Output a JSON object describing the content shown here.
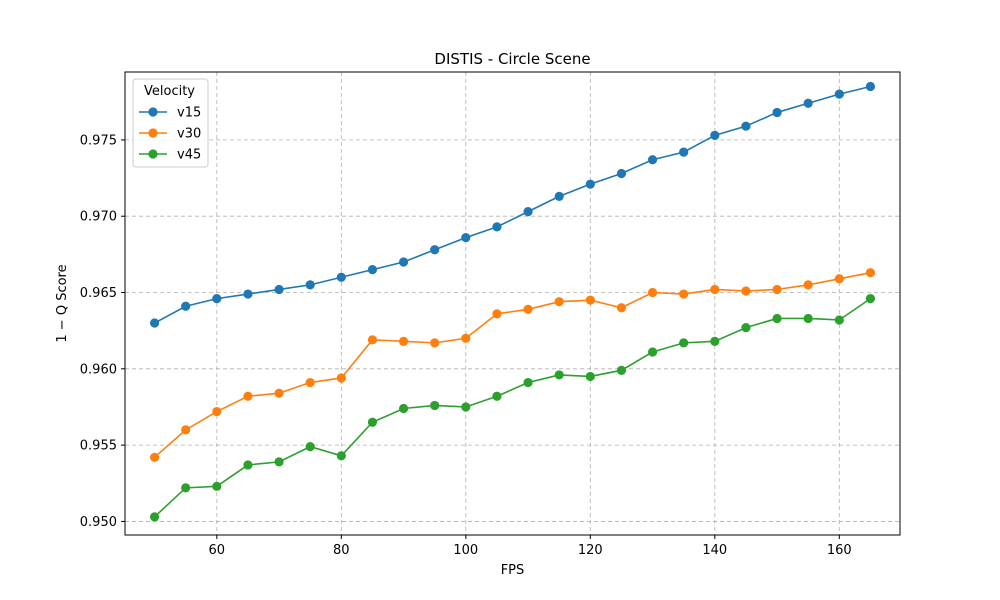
{
  "chart_data": {
    "type": "line",
    "title": "DISTIS - Circle Scene",
    "xlabel": "FPS",
    "ylabel": "1 − Q Score",
    "xlim": [
      45.25,
      169.75
    ],
    "ylim": [
      0.94911,
      0.97945
    ],
    "xticks": [
      60,
      80,
      100,
      120,
      140,
      160
    ],
    "yticks": [
      0.95,
      0.955,
      0.96,
      0.965,
      0.97,
      0.975
    ],
    "ytick_labels": [
      "0.950",
      "0.955",
      "0.960",
      "0.965",
      "0.970",
      "0.975"
    ],
    "grid": true,
    "legend": {
      "title": "Velocity",
      "placement": "top-left"
    },
    "x": [
      50,
      55,
      60,
      65,
      70,
      75,
      80,
      85,
      90,
      95,
      100,
      105,
      110,
      115,
      120,
      125,
      130,
      135,
      140,
      145,
      150,
      155,
      160,
      165
    ],
    "series": [
      {
        "name": "v15",
        "color": "#1f77b4",
        "values": [
          0.963,
          0.9641,
          0.9646,
          0.9649,
          0.9652,
          0.9655,
          0.966,
          0.9665,
          0.967,
          0.9678,
          0.9686,
          0.9693,
          0.9703,
          0.9713,
          0.9721,
          0.9728,
          0.9737,
          0.9742,
          0.9753,
          0.9759,
          0.9768,
          0.9774,
          0.978,
          0.9785
        ]
      },
      {
        "name": "v30",
        "color": "#ff7f0e",
        "values": [
          0.9542,
          0.956,
          0.9572,
          0.9582,
          0.9584,
          0.9591,
          0.9594,
          0.9619,
          0.9618,
          0.9617,
          0.962,
          0.9636,
          0.9639,
          0.9644,
          0.9645,
          0.964,
          0.965,
          0.9649,
          0.9652,
          0.9651,
          0.9652,
          0.9655,
          0.9659,
          0.9663
        ]
      },
      {
        "name": "v45",
        "color": "#2ca02c",
        "values": [
          0.9503,
          0.9522,
          0.9523,
          0.9537,
          0.9539,
          0.9549,
          0.9543,
          0.9565,
          0.9574,
          0.9576,
          0.9575,
          0.9582,
          0.9591,
          0.9596,
          0.9595,
          0.9599,
          0.9611,
          0.9617,
          0.9618,
          0.9627,
          0.9633,
          0.9633,
          0.9632,
          0.9646
        ]
      }
    ]
  }
}
